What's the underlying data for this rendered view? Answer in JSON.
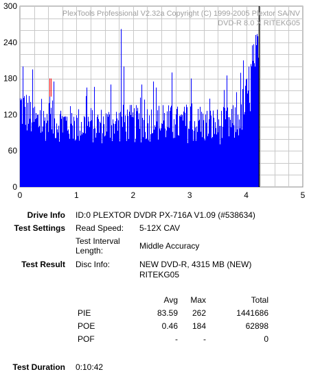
{
  "chart_data": {
    "type": "bar",
    "title": "PlexTools Professional V2.32a Copyright (C) 1999-2005 Plextor SA/NV",
    "subtitle": "DVD-R   8.0 X   RITEKG05",
    "xlim": [
      0,
      5
    ],
    "ylim": [
      0,
      300
    ],
    "x_ticks": [
      "0",
      "1",
      "2",
      "3",
      "4",
      "5"
    ],
    "y_ticks": [
      "0",
      "60",
      "120",
      "180",
      "240",
      "300"
    ],
    "grid": true,
    "bar_color": "#0000ff",
    "marker_color": "#ff0000",
    "end_line_x": 4.22,
    "series": [
      {
        "x_start": 0,
        "x_end": 4.22,
        "envelope": [
          [
            0.0,
            150
          ],
          [
            0.1,
            140
          ],
          [
            0.2,
            130
          ],
          [
            0.3,
            120
          ],
          [
            0.4,
            118
          ],
          [
            0.5,
            125
          ],
          [
            0.6,
            122
          ],
          [
            0.7,
            120
          ],
          [
            0.8,
            118
          ],
          [
            0.9,
            116
          ],
          [
            1.0,
            114
          ],
          [
            1.1,
            115
          ],
          [
            1.2,
            116
          ],
          [
            1.3,
            115
          ],
          [
            1.4,
            114
          ],
          [
            1.5,
            115
          ],
          [
            1.6,
            116
          ],
          [
            1.7,
            117
          ],
          [
            1.8,
            118
          ],
          [
            1.9,
            118
          ],
          [
            2.0,
            117
          ],
          [
            2.1,
            116
          ],
          [
            2.2,
            118
          ],
          [
            2.3,
            120
          ],
          [
            2.4,
            120
          ],
          [
            2.5,
            119
          ],
          [
            2.6,
            118
          ],
          [
            2.7,
            117
          ],
          [
            2.8,
            116
          ],
          [
            2.9,
            116
          ],
          [
            3.0,
            117
          ],
          [
            3.1,
            116
          ],
          [
            3.2,
            115
          ],
          [
            3.3,
            114
          ],
          [
            3.4,
            114
          ],
          [
            3.5,
            113
          ],
          [
            3.6,
            114
          ],
          [
            3.7,
            115
          ],
          [
            3.8,
            118
          ],
          [
            3.9,
            135
          ],
          [
            4.0,
            160
          ],
          [
            4.05,
            185
          ],
          [
            4.1,
            200
          ],
          [
            4.15,
            215
          ],
          [
            4.2,
            230
          ],
          [
            4.22,
            240
          ]
        ],
        "spikes": [
          [
            0.05,
            200
          ],
          [
            0.22,
            195
          ],
          [
            0.52,
            180
          ],
          [
            0.6,
            175
          ],
          [
            1.18,
            165
          ],
          [
            1.6,
            170
          ],
          [
            1.78,
            262
          ],
          [
            1.83,
            200
          ],
          [
            2.15,
            170
          ],
          [
            2.35,
            175
          ],
          [
            2.4,
            165
          ],
          [
            2.68,
            190
          ],
          [
            3.02,
            180
          ],
          [
            3.65,
            185
          ],
          [
            3.95,
            210
          ],
          [
            4.1,
            235
          ],
          [
            4.2,
            250
          ]
        ]
      }
    ]
  },
  "info": {
    "drive_label": "Drive Info",
    "drive_value": "ID:0 PLEXTOR DVDR PX-716A V1.09 (#538634)",
    "settings_label": "Test Settings",
    "read_speed_label": "Read Speed:",
    "read_speed_value": "5-12X CAV",
    "interval_label_1": "Test Interval",
    "interval_label_2": "Length:",
    "interval_value": "Middle Accuracy",
    "result_label": "Test Result",
    "disc_info_label": "Disc Info:",
    "disc_info_value_1": "NEW DVD-R, 4315 MB (NEW)",
    "disc_info_value_2": "RITEKG05",
    "duration_label": "Test Duration",
    "duration_value": "0:10:42"
  },
  "stats": {
    "headers": {
      "avg": "Avg",
      "max": "Max",
      "total": "Total"
    },
    "rows": [
      {
        "name": "PIE",
        "avg": "83.59",
        "max": "262",
        "total": "1441686"
      },
      {
        "name": "POE",
        "avg": "0.46",
        "max": "184",
        "total": "62898"
      },
      {
        "name": "POF",
        "avg": "-",
        "max": "-",
        "total": "0"
      }
    ]
  }
}
